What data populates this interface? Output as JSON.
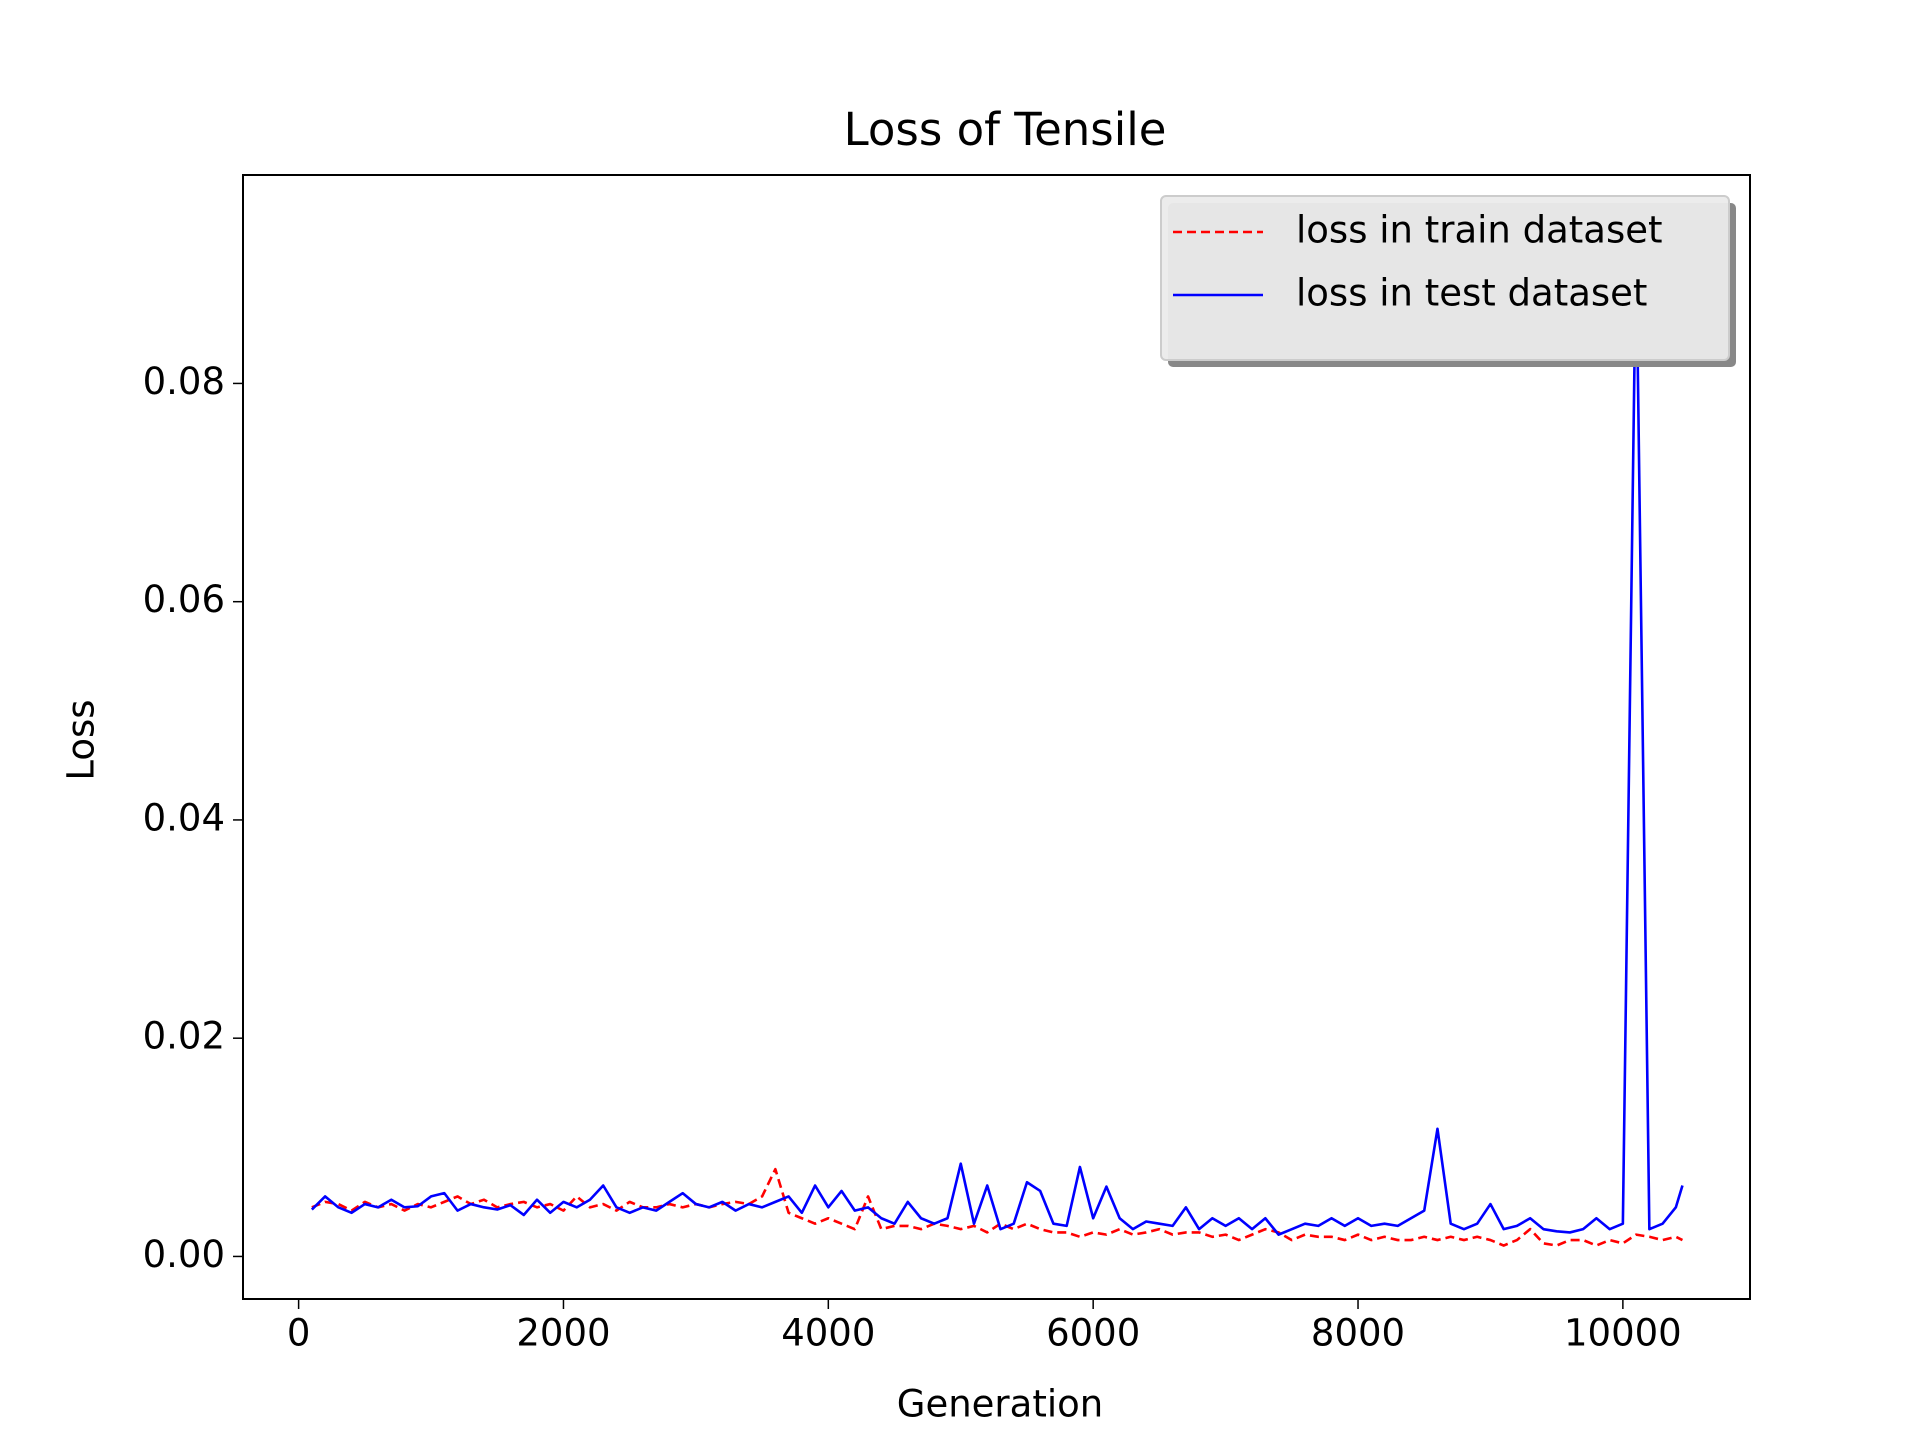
{
  "chart_data": {
    "type": "line",
    "title": "Loss of Tensile",
    "xlabel": "Generation",
    "ylabel": "Loss",
    "x": [
      100,
      200,
      300,
      400,
      500,
      600,
      700,
      800,
      900,
      1000,
      1100,
      1200,
      1300,
      1400,
      1500,
      1600,
      1700,
      1800,
      1900,
      2000,
      2100,
      2200,
      2300,
      2400,
      2500,
      2600,
      2700,
      2800,
      2900,
      3000,
      3100,
      3200,
      3300,
      3400,
      3500,
      3600,
      3700,
      3800,
      3900,
      4000,
      4100,
      4200,
      4300,
      4400,
      4500,
      4600,
      4700,
      4800,
      4900,
      5000,
      5100,
      5200,
      5300,
      5400,
      5500,
      5600,
      5700,
      5800,
      5900,
      6000,
      6100,
      6200,
      6300,
      6400,
      6500,
      6600,
      6700,
      6800,
      6900,
      7000,
      7100,
      7200,
      7300,
      7400,
      7500,
      7600,
      7700,
      7800,
      7900,
      8000,
      8100,
      8200,
      8300,
      8400,
      8500,
      8600,
      8700,
      8800,
      8900,
      9000,
      9100,
      9200,
      9300,
      9400,
      9500,
      9600,
      9700,
      9800,
      9900,
      10000,
      10100,
      10200,
      10300,
      10400,
      10450
    ],
    "series": [
      {
        "name": "loss in train dataset",
        "color": "#ff0000",
        "dash": true,
        "values": [
          0.0045,
          0.005,
          0.0048,
          0.0042,
          0.005,
          0.0045,
          0.0048,
          0.0042,
          0.0048,
          0.0045,
          0.005,
          0.0055,
          0.0048,
          0.0052,
          0.0045,
          0.0048,
          0.005,
          0.0045,
          0.0048,
          0.0042,
          0.0055,
          0.0045,
          0.0048,
          0.0042,
          0.005,
          0.0045,
          0.0045,
          0.0048,
          0.0045,
          0.0048,
          0.0045,
          0.0048,
          0.005,
          0.0048,
          0.0055,
          0.008,
          0.004,
          0.0035,
          0.003,
          0.0035,
          0.003,
          0.0025,
          0.0055,
          0.0025,
          0.0028,
          0.0028,
          0.0025,
          0.003,
          0.0028,
          0.0025,
          0.0028,
          0.0022,
          0.003,
          0.0025,
          0.003,
          0.0025,
          0.0022,
          0.0022,
          0.0018,
          0.0022,
          0.002,
          0.0025,
          0.002,
          0.0022,
          0.0025,
          0.002,
          0.0022,
          0.0022,
          0.0018,
          0.002,
          0.0015,
          0.002,
          0.0025,
          0.0022,
          0.0015,
          0.002,
          0.0018,
          0.0018,
          0.0015,
          0.002,
          0.0015,
          0.0018,
          0.0015,
          0.0015,
          0.0018,
          0.0015,
          0.0018,
          0.0015,
          0.0018,
          0.0015,
          0.001,
          0.0015,
          0.0025,
          0.0012,
          0.001,
          0.0015,
          0.0015,
          0.001,
          0.0015,
          0.0012,
          0.002,
          0.0018,
          0.0015,
          0.0018,
          0.0015
        ]
      },
      {
        "name": "loss in test dataset",
        "color": "#0000ff",
        "dash": false,
        "values": [
          0.0043,
          0.0055,
          0.0045,
          0.004,
          0.0048,
          0.0045,
          0.0052,
          0.0045,
          0.0046,
          0.0055,
          0.0058,
          0.0042,
          0.0048,
          0.0045,
          0.0043,
          0.0047,
          0.0038,
          0.0052,
          0.004,
          0.005,
          0.0045,
          0.0052,
          0.0065,
          0.0045,
          0.004,
          0.0045,
          0.0042,
          0.005,
          0.0058,
          0.0048,
          0.0045,
          0.005,
          0.0042,
          0.0048,
          0.0045,
          0.005,
          0.0055,
          0.004,
          0.0065,
          0.0045,
          0.006,
          0.0042,
          0.0045,
          0.0035,
          0.003,
          0.005,
          0.0035,
          0.003,
          0.0035,
          0.0085,
          0.003,
          0.0065,
          0.0025,
          0.003,
          0.0068,
          0.006,
          0.003,
          0.0028,
          0.0082,
          0.0035,
          0.0064,
          0.0035,
          0.0025,
          0.0032,
          0.003,
          0.0028,
          0.0045,
          0.0025,
          0.0035,
          0.0028,
          0.0035,
          0.0025,
          0.0035,
          0.002,
          0.0025,
          0.003,
          0.0028,
          0.0035,
          0.0028,
          0.0035,
          0.0028,
          0.003,
          0.0028,
          0.0035,
          0.0042,
          0.0117,
          0.003,
          0.0025,
          0.003,
          0.0048,
          0.0025,
          0.0028,
          0.0035,
          0.0025,
          0.0023,
          0.0022,
          0.0025,
          0.0035,
          0.0025,
          0.003,
          0.093,
          0.0025,
          0.003,
          0.0045,
          0.0065
        ]
      }
    ],
    "xlim": [
      -420,
      10960
    ],
    "ylim": [
      -0.0039,
      0.0991
    ],
    "xticks": [
      0,
      2000,
      4000,
      6000,
      8000,
      10000
    ],
    "yticks": [
      {
        "value": 0,
        "label": "0.00"
      },
      {
        "value": 0.02,
        "label": "0.02"
      },
      {
        "value": 0.04,
        "label": "0.04"
      },
      {
        "value": 0.06,
        "label": "0.06"
      },
      {
        "value": 0.08,
        "label": "0.08"
      }
    ],
    "legend": "upper right",
    "grid": false
  }
}
